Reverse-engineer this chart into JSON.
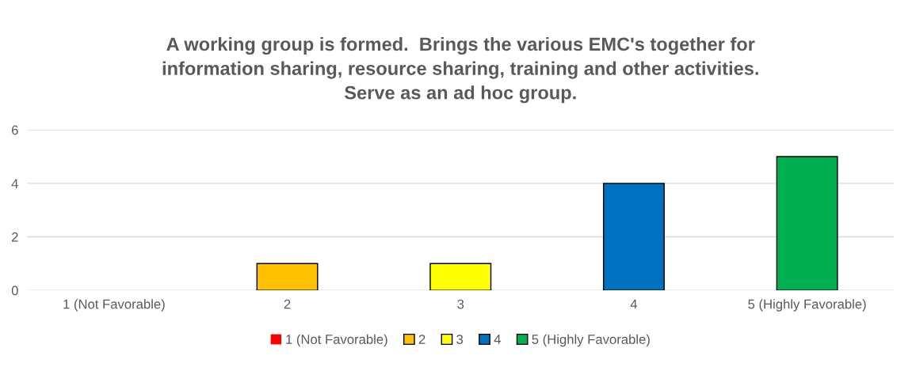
{
  "chart_data": {
    "type": "bar",
    "title": "A working group is formed.  Brings the various EMC's together for\ninformation sharing, resource sharing, training and other activities.\nServe as an ad hoc group.",
    "categories": [
      "1 (Not Favorable)",
      "2",
      "3",
      "4",
      "5 (Highly Favorable)"
    ],
    "series": [
      {
        "name": "1 (Not Favorable)",
        "color": "#ff0000",
        "values": [
          0,
          null,
          null,
          null,
          null
        ]
      },
      {
        "name": "2",
        "color": "#ffc000",
        "values": [
          null,
          1,
          null,
          null,
          null
        ]
      },
      {
        "name": "3",
        "color": "#ffff00",
        "values": [
          null,
          null,
          1,
          null,
          null
        ]
      },
      {
        "name": "4",
        "color": "#0070c0",
        "values": [
          null,
          null,
          null,
          4,
          null
        ]
      },
      {
        "name": "5 (Highly Favorable)",
        "color": "#00b050",
        "values": [
          null,
          null,
          null,
          null,
          5
        ]
      }
    ],
    "ylim": [
      0,
      6
    ],
    "yticks": [
      0,
      2,
      4,
      6
    ],
    "grid": "y",
    "legend": "bottom"
  }
}
